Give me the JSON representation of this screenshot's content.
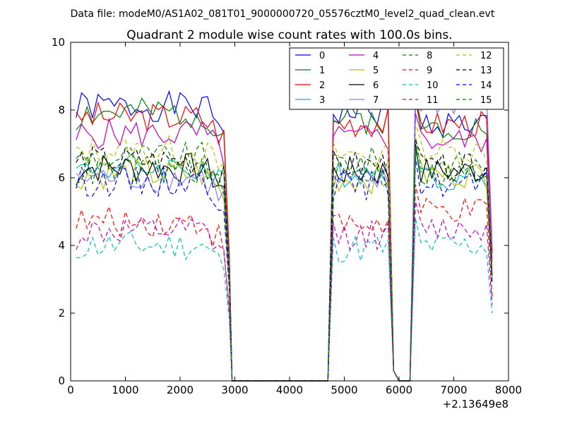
{
  "chart_data": {
    "type": "line",
    "suptitle": "Data file: modeM0/AS1A02_081T01_9000000720_05576cztM0_level2_quad_clean.evt",
    "title": "Quadrant 2 module wise count rates with 100.0s bins.",
    "xlabel": "",
    "ylabel": "",
    "xlim": [
      0,
      8000
    ],
    "ylim": [
      0,
      10
    ],
    "x_offset_label": "+2.13649e8",
    "xticks": [
      0,
      1000,
      2000,
      3000,
      4000,
      5000,
      6000,
      7000,
      8000
    ],
    "xtick_labels": [
      "0",
      "1000",
      "2000",
      "3000",
      "4000",
      "5000",
      "6000",
      "7000",
      "8000"
    ],
    "yticks": [
      0,
      2,
      4,
      6,
      8,
      10
    ],
    "ytick_labels": [
      "0",
      "2",
      "4",
      "6",
      "8",
      "10"
    ],
    "legend_position": "top-right",
    "legend_columns": 4,
    "grid": false,
    "series": [
      {
        "name": "0",
        "color": "#0000ff",
        "dash": "solid",
        "level": 8.1,
        "tail": 7.6,
        "seed": 1
      },
      {
        "name": "1",
        "color": "#008000",
        "dash": "solid",
        "level": 7.9,
        "tail": 7.5,
        "seed": 2
      },
      {
        "name": "2",
        "color": "#ff0000",
        "dash": "solid",
        "level": 7.8,
        "tail": 7.6,
        "seed": 3
      },
      {
        "name": "3",
        "color": "#00bfbf",
        "dash": "solid",
        "level": 6.3,
        "tail": 6.0,
        "seed": 4
      },
      {
        "name": "4",
        "color": "#bf00bf",
        "dash": "solid",
        "level": 7.3,
        "tail": 7.1,
        "seed": 5
      },
      {
        "name": "5",
        "color": "#bfbf00",
        "dash": "solid",
        "level": 6.1,
        "tail": 6.1,
        "seed": 6
      },
      {
        "name": "6",
        "color": "#000000",
        "dash": "solid",
        "level": 6.3,
        "tail": 6.2,
        "seed": 7
      },
      {
        "name": "7",
        "color": "#7f7fff",
        "dash": "solid",
        "level": 6.0,
        "tail": 8.2,
        "seed": 8
      },
      {
        "name": "8",
        "color": "#008000",
        "dash": "dashed",
        "level": 6.6,
        "tail": 6.4,
        "seed": 9
      },
      {
        "name": "9",
        "color": "#ff0000",
        "dash": "dashed",
        "level": 4.7,
        "tail": 5.0,
        "seed": 10
      },
      {
        "name": "10",
        "color": "#00bfbf",
        "dash": "dashed",
        "level": 4.0,
        "tail": 4.0,
        "seed": 11
      },
      {
        "name": "11",
        "color": "#bf00bf",
        "dash": "dashed",
        "level": 4.4,
        "tail": 4.5,
        "seed": 12
      },
      {
        "name": "12",
        "color": "#bfbf00",
        "dash": "dashed",
        "level": 6.8,
        "tail": 6.8,
        "seed": 13
      },
      {
        "name": "13",
        "color": "#000000",
        "dash": "dashed",
        "level": 6.5,
        "tail": 6.3,
        "seed": 14
      },
      {
        "name": "14",
        "color": "#0000ff",
        "dash": "dashed",
        "level": 5.9,
        "tail": 5.8,
        "seed": 15
      },
      {
        "name": "15",
        "color": "#008000",
        "dash": "dashed",
        "level": 6.2,
        "tail": 6.1,
        "seed": 16
      }
    ],
    "segments": [
      {
        "x_start": 100,
        "x_end": 2800,
        "step": 100
      },
      {
        "x_start": 4800,
        "x_end": 5800,
        "step": 100
      },
      {
        "x_start": 6300,
        "x_end": 7600,
        "step": 100
      }
    ],
    "gap_value": 0
  }
}
